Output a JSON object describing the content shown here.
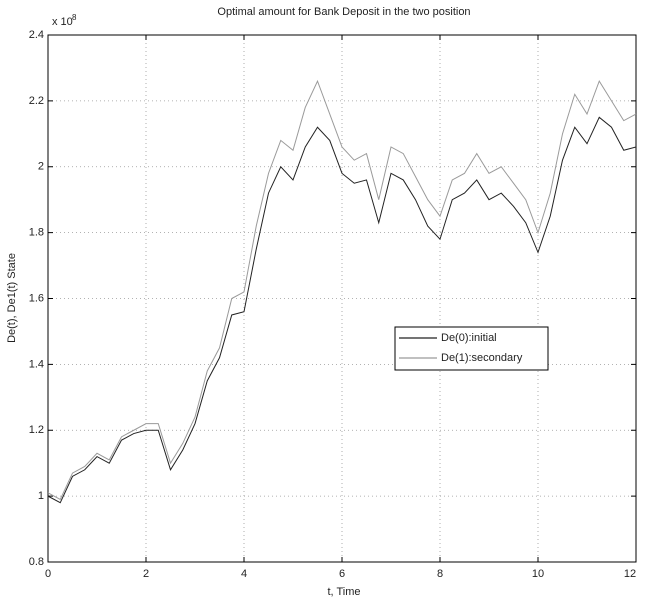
{
  "chart_data": {
    "type": "line",
    "title": "Optimal amount for Bank Deposit in the two position",
    "x_label": "t, Time",
    "y_label": "De(t), De1(t) State",
    "y_multiplier": "x 10",
    "y_multiplier_exponent": "8",
    "x": [
      0,
      0.25,
      0.5,
      0.75,
      1,
      1.25,
      1.5,
      1.75,
      2,
      2.25,
      2.5,
      2.75,
      3,
      3.25,
      3.5,
      3.75,
      4,
      4.25,
      4.5,
      4.75,
      5,
      5.25,
      5.5,
      5.75,
      6,
      6.25,
      6.5,
      6.75,
      7,
      7.25,
      7.5,
      7.75,
      8,
      8.25,
      8.5,
      8.75,
      9,
      9.25,
      9.5,
      9.75,
      10,
      10.25,
      10.5,
      10.75,
      11,
      11.25,
      11.5,
      11.75,
      12
    ],
    "series": [
      {
        "name": "De(0):initial",
        "color": "#222222",
        "values": [
          1.0,
          0.98,
          1.06,
          1.08,
          1.12,
          1.1,
          1.17,
          1.19,
          1.2,
          1.2,
          1.08,
          1.14,
          1.22,
          1.35,
          1.42,
          1.55,
          1.56,
          1.75,
          1.92,
          2.0,
          1.96,
          2.06,
          2.12,
          2.08,
          1.98,
          1.95,
          1.96,
          1.83,
          1.98,
          1.96,
          1.9,
          1.82,
          1.78,
          1.9,
          1.92,
          1.96,
          1.9,
          1.92,
          1.88,
          1.83,
          1.74,
          1.85,
          2.02,
          2.12,
          2.07,
          2.15,
          2.12,
          2.05,
          2.06
        ]
      },
      {
        "name": "De(1):secondary",
        "color": "#9a9a9a",
        "values": [
          1.01,
          0.99,
          1.07,
          1.09,
          1.13,
          1.11,
          1.18,
          1.2,
          1.22,
          1.22,
          1.1,
          1.16,
          1.24,
          1.38,
          1.45,
          1.6,
          1.62,
          1.82,
          1.98,
          2.08,
          2.05,
          2.18,
          2.26,
          2.16,
          2.06,
          2.02,
          2.04,
          1.9,
          2.06,
          2.04,
          1.97,
          1.9,
          1.85,
          1.96,
          1.98,
          2.04,
          1.98,
          2.0,
          1.95,
          1.9,
          1.8,
          1.92,
          2.1,
          2.22,
          2.16,
          2.26,
          2.2,
          2.14,
          2.16
        ]
      }
    ],
    "xlim": [
      0,
      12
    ],
    "xticks": [
      0,
      2,
      4,
      6,
      8,
      10,
      12
    ],
    "ylim": [
      0.8,
      2.4
    ],
    "yticks": [
      0.8,
      1,
      1.2,
      1.4,
      1.6,
      1.8,
      2,
      2.2,
      2.4
    ],
    "grid": true,
    "legend": "right"
  }
}
